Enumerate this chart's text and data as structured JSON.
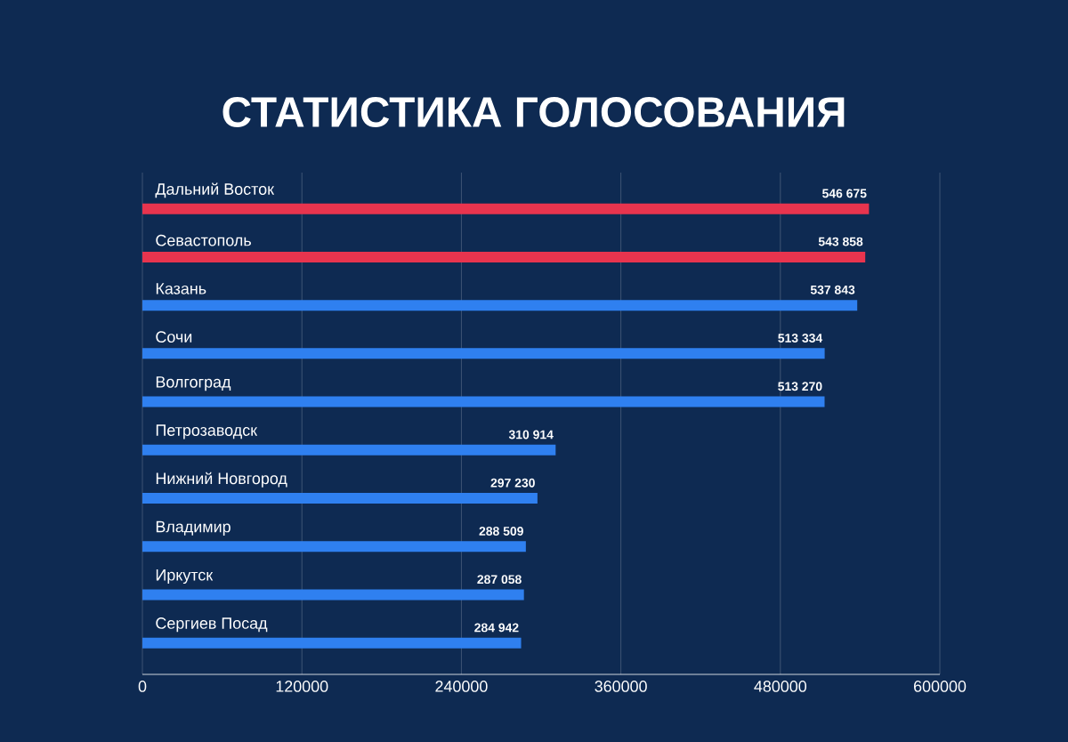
{
  "chart_data": {
    "type": "bar",
    "orientation": "horizontal",
    "title": "СТАТИСТИКА ГОЛОСОВАНИЯ",
    "categories": [
      "Дальний Восток",
      "Севастополь",
      "Казань",
      "Сочи",
      "Волгоград",
      "Петрозаводск",
      "Нижний Новгород",
      "Владимир",
      "Иркутск",
      "Сергиев Посад"
    ],
    "values": [
      546675,
      543858,
      537843,
      513334,
      513270,
      310914,
      297230,
      288509,
      287058,
      284942
    ],
    "value_labels": [
      "546 675",
      "543 858",
      "537 843",
      "513 334",
      "513 270",
      "310 914",
      "297 230",
      "288 509",
      "287 058",
      "284 942"
    ],
    "colors": [
      "#e8344e",
      "#e8344e",
      "#2f80f0",
      "#2f80f0",
      "#2f80f0",
      "#2f80f0",
      "#2f80f0",
      "#2f80f0",
      "#2f80f0",
      "#2f80f0"
    ],
    "xlim": [
      0,
      600000
    ],
    "xticks": [
      0,
      120000,
      240000,
      360000,
      480000,
      600000
    ],
    "grid": "x"
  }
}
